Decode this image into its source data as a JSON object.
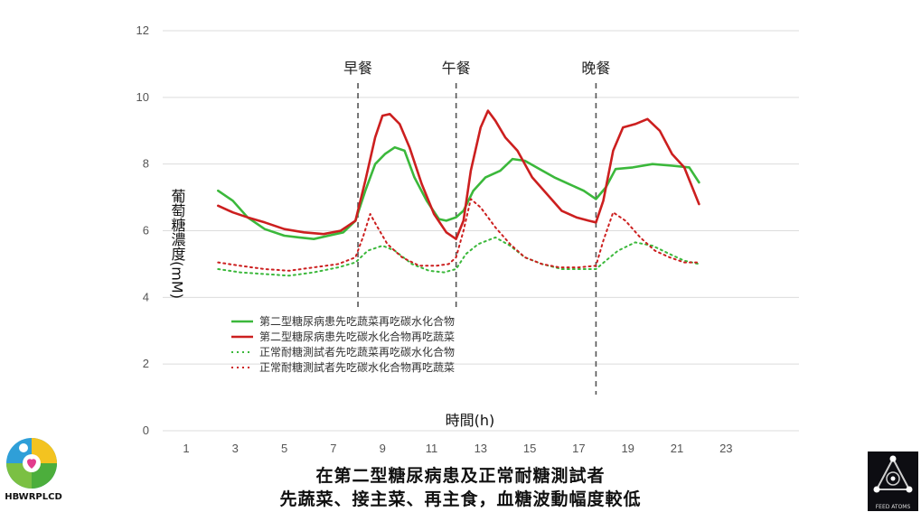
{
  "chart_data": {
    "type": "line",
    "xlabel": "時間(h)",
    "ylabel": "葡萄糖濃度(mM)",
    "xlim": [
      0,
      25
    ],
    "ylim": [
      0,
      12
    ],
    "x_ticks": [
      1,
      3,
      5,
      7,
      9,
      11,
      13,
      15,
      17,
      19,
      21,
      23
    ],
    "y_ticks": [
      0,
      2,
      4,
      6,
      8,
      10,
      12
    ],
    "grid": "horizontal",
    "legend_position": "lower-left",
    "meals": [
      {
        "label": "早餐",
        "x": 8.0
      },
      {
        "label": "午餐",
        "x": 12.0
      },
      {
        "label": "晚餐",
        "x": 17.7
      }
    ],
    "series": [
      {
        "name": "第二型糖尿病患先吃蔬菜再吃碳水化合物",
        "color": "#3bb83b",
        "style": "solid",
        "points": [
          [
            2.3,
            7.2
          ],
          [
            2.9,
            6.9
          ],
          [
            3.5,
            6.4
          ],
          [
            4.2,
            6.05
          ],
          [
            5.0,
            5.85
          ],
          [
            5.6,
            5.8
          ],
          [
            6.2,
            5.75
          ],
          [
            6.8,
            5.85
          ],
          [
            7.4,
            5.95
          ],
          [
            7.9,
            6.3
          ],
          [
            8.3,
            7.2
          ],
          [
            8.7,
            8.0
          ],
          [
            9.1,
            8.3
          ],
          [
            9.5,
            8.5
          ],
          [
            9.9,
            8.4
          ],
          [
            10.3,
            7.6
          ],
          [
            10.8,
            6.9
          ],
          [
            11.3,
            6.35
          ],
          [
            11.6,
            6.3
          ],
          [
            12.0,
            6.4
          ],
          [
            12.3,
            6.6
          ],
          [
            12.7,
            7.2
          ],
          [
            13.2,
            7.6
          ],
          [
            13.8,
            7.8
          ],
          [
            14.3,
            8.15
          ],
          [
            14.8,
            8.1
          ],
          [
            15.4,
            7.85
          ],
          [
            16.0,
            7.6
          ],
          [
            16.6,
            7.4
          ],
          [
            17.2,
            7.2
          ],
          [
            17.7,
            6.95
          ],
          [
            18.1,
            7.3
          ],
          [
            18.5,
            7.85
          ],
          [
            19.2,
            7.9
          ],
          [
            20.0,
            8.0
          ],
          [
            20.8,
            7.95
          ],
          [
            21.5,
            7.9
          ],
          [
            21.9,
            7.45
          ]
        ]
      },
      {
        "name": "第二型糖尿病患先吃碳水化合物再吃蔬菜",
        "color": "#cc1f1f",
        "style": "solid",
        "points": [
          [
            2.3,
            6.75
          ],
          [
            2.9,
            6.55
          ],
          [
            3.5,
            6.4
          ],
          [
            4.2,
            6.25
          ],
          [
            5.0,
            6.05
          ],
          [
            5.8,
            5.95
          ],
          [
            6.6,
            5.9
          ],
          [
            7.3,
            6.0
          ],
          [
            7.9,
            6.3
          ],
          [
            8.3,
            7.5
          ],
          [
            8.7,
            8.8
          ],
          [
            9.0,
            9.45
          ],
          [
            9.3,
            9.5
          ],
          [
            9.7,
            9.2
          ],
          [
            10.1,
            8.5
          ],
          [
            10.6,
            7.4
          ],
          [
            11.1,
            6.5
          ],
          [
            11.6,
            5.95
          ],
          [
            12.0,
            5.75
          ],
          [
            12.3,
            6.3
          ],
          [
            12.6,
            7.8
          ],
          [
            13.0,
            9.1
          ],
          [
            13.3,
            9.6
          ],
          [
            13.6,
            9.3
          ],
          [
            14.0,
            8.8
          ],
          [
            14.5,
            8.4
          ],
          [
            15.1,
            7.6
          ],
          [
            15.7,
            7.1
          ],
          [
            16.3,
            6.6
          ],
          [
            16.9,
            6.4
          ],
          [
            17.4,
            6.3
          ],
          [
            17.7,
            6.25
          ],
          [
            18.0,
            6.9
          ],
          [
            18.4,
            8.4
          ],
          [
            18.8,
            9.1
          ],
          [
            19.3,
            9.2
          ],
          [
            19.8,
            9.35
          ],
          [
            20.3,
            9.0
          ],
          [
            20.8,
            8.3
          ],
          [
            21.3,
            7.9
          ],
          [
            21.9,
            6.8
          ]
        ]
      },
      {
        "name": "正常耐糖測試者先吃蔬菜再吃碳水化合物",
        "color": "#3bb83b",
        "style": "dotted",
        "points": [
          [
            2.3,
            4.85
          ],
          [
            3.2,
            4.75
          ],
          [
            4.2,
            4.7
          ],
          [
            5.2,
            4.65
          ],
          [
            6.2,
            4.75
          ],
          [
            7.2,
            4.9
          ],
          [
            7.9,
            5.05
          ],
          [
            8.4,
            5.4
          ],
          [
            9.0,
            5.55
          ],
          [
            9.5,
            5.4
          ],
          [
            10.2,
            5.0
          ],
          [
            10.9,
            4.8
          ],
          [
            11.5,
            4.75
          ],
          [
            12.0,
            4.85
          ],
          [
            12.4,
            5.3
          ],
          [
            12.9,
            5.6
          ],
          [
            13.6,
            5.8
          ],
          [
            14.2,
            5.55
          ],
          [
            14.8,
            5.2
          ],
          [
            15.5,
            5.0
          ],
          [
            16.3,
            4.85
          ],
          [
            17.0,
            4.85
          ],
          [
            17.7,
            4.85
          ],
          [
            18.1,
            5.1
          ],
          [
            18.6,
            5.4
          ],
          [
            19.3,
            5.65
          ],
          [
            20.0,
            5.55
          ],
          [
            20.7,
            5.3
          ],
          [
            21.3,
            5.1
          ],
          [
            21.9,
            5.0
          ]
        ]
      },
      {
        "name": "正常耐糖測試者先吃碳水化合物再吃蔬菜",
        "color": "#cc1f1f",
        "style": "dotted",
        "points": [
          [
            2.3,
            5.05
          ],
          [
            3.2,
            4.95
          ],
          [
            4.2,
            4.85
          ],
          [
            5.2,
            4.8
          ],
          [
            6.2,
            4.9
          ],
          [
            7.2,
            5.0
          ],
          [
            7.9,
            5.2
          ],
          [
            8.2,
            5.8
          ],
          [
            8.5,
            6.5
          ],
          [
            8.8,
            6.1
          ],
          [
            9.2,
            5.6
          ],
          [
            9.8,
            5.2
          ],
          [
            10.5,
            4.95
          ],
          [
            11.2,
            4.95
          ],
          [
            11.7,
            5.0
          ],
          [
            12.0,
            5.2
          ],
          [
            12.3,
            6.0
          ],
          [
            12.6,
            6.95
          ],
          [
            13.0,
            6.7
          ],
          [
            13.6,
            6.1
          ],
          [
            14.2,
            5.6
          ],
          [
            14.8,
            5.2
          ],
          [
            15.5,
            5.0
          ],
          [
            16.2,
            4.9
          ],
          [
            17.0,
            4.9
          ],
          [
            17.7,
            4.95
          ],
          [
            18.0,
            5.7
          ],
          [
            18.4,
            6.55
          ],
          [
            18.9,
            6.3
          ],
          [
            19.5,
            5.8
          ],
          [
            20.1,
            5.4
          ],
          [
            20.7,
            5.2
          ],
          [
            21.3,
            5.05
          ],
          [
            21.9,
            5.05
          ]
        ]
      }
    ]
  },
  "caption": {
    "line1": "在第二型糖尿病患及正常耐糖測試者",
    "line2": "先蔬菜、接主菜、再主食，血糖波動幅度較低"
  },
  "logos": {
    "left_label": "HBWRPLCD",
    "right_label": "FEED ATOMS"
  }
}
